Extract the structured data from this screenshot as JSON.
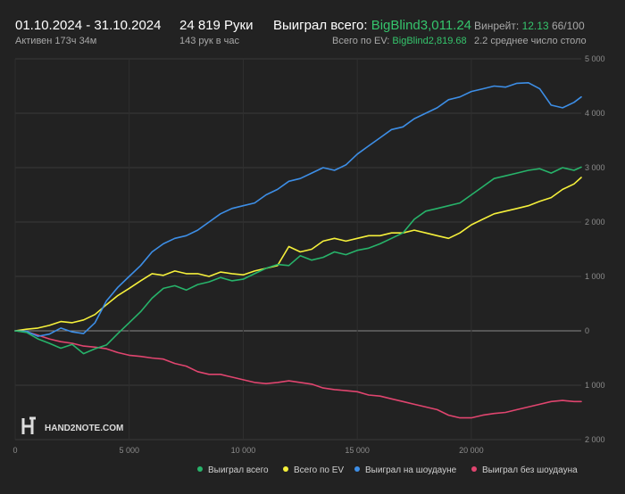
{
  "header": {
    "date_range": "01.10.2024 - 31.10.2024",
    "active_time": "Активен 173ч 34м",
    "hands": "24 819 Руки",
    "hands_per_hour": "143 рук в час",
    "won_label": "Выиграл всего:",
    "won_value": "BigBlind3,011.24",
    "ev_label": "Всего по EV:",
    "ev_value": "BigBlind2,819.68",
    "winrate_label": "Винрейт:",
    "winrate_value": "12.13",
    "winrate_rest": "66/100",
    "avg_tables": "2.2 среднее число столо"
  },
  "logo_text": "HAND2NOTE.COM",
  "colors": {
    "won": "#27b36a",
    "ev": "#f5f03b",
    "showdown": "#3d8ee6",
    "non_showdown": "#e0456f",
    "background": "#222222",
    "grid": "#3a3a3a"
  },
  "chart_data": {
    "type": "line",
    "xlim": [
      0,
      24819
    ],
    "ylim": [
      -2000,
      5000
    ],
    "x_ticks": [
      0,
      5000,
      10000,
      15000,
      20000
    ],
    "x_tick_labels": [
      "0",
      "5 000",
      "10 000",
      "15 000",
      "20 000"
    ],
    "y_ticks": [
      5000,
      4000,
      3000,
      2000,
      1000,
      0,
      -1000,
      -2000
    ],
    "y_tick_labels": [
      "5 000",
      "4 000",
      "3 000",
      "2 000",
      "1 000",
      "0",
      "1 000",
      "2 000"
    ],
    "grid": true,
    "legend_position": "bottom-right",
    "series": [
      {
        "name": "Выиграл всего",
        "color": "#27b36a",
        "x": [
          0,
          500,
          1000,
          1500,
          2000,
          2500,
          3000,
          3500,
          4000,
          4500,
          5000,
          5500,
          6000,
          6500,
          7000,
          7500,
          8000,
          8500,
          9000,
          9500,
          10000,
          10500,
          11000,
          11500,
          12000,
          12500,
          13000,
          13500,
          14000,
          14500,
          15000,
          15500,
          16000,
          16500,
          17000,
          17500,
          18000,
          18500,
          19000,
          19500,
          20000,
          20500,
          21000,
          21500,
          22000,
          22500,
          23000,
          23500,
          24000,
          24500,
          24819
        ],
        "values": [
          0,
          -30,
          -150,
          -230,
          -320,
          -250,
          -420,
          -330,
          -260,
          -50,
          150,
          350,
          600,
          780,
          830,
          750,
          850,
          900,
          980,
          920,
          950,
          1050,
          1150,
          1220,
          1200,
          1380,
          1300,
          1350,
          1450,
          1400,
          1480,
          1520,
          1600,
          1700,
          1800,
          2050,
          2200,
          2250,
          2300,
          2350,
          2500,
          2650,
          2800,
          2850,
          2900,
          2950,
          2980,
          2900,
          3000,
          2950,
          3010
        ]
      },
      {
        "name": "Всего по EV",
        "color": "#f5f03b",
        "x": [
          0,
          500,
          1000,
          1500,
          2000,
          2500,
          3000,
          3500,
          4000,
          4500,
          5000,
          5500,
          6000,
          6500,
          7000,
          7500,
          8000,
          8500,
          9000,
          9500,
          10000,
          10500,
          11000,
          11500,
          12000,
          12500,
          13000,
          13500,
          14000,
          14500,
          15000,
          15500,
          16000,
          16500,
          17000,
          17500,
          18000,
          18500,
          19000,
          19500,
          20000,
          20500,
          21000,
          21500,
          22000,
          22500,
          23000,
          23500,
          24000,
          24500,
          24819
        ],
        "values": [
          0,
          30,
          50,
          100,
          170,
          150,
          200,
          300,
          480,
          650,
          780,
          920,
          1050,
          1020,
          1100,
          1050,
          1050,
          1000,
          1080,
          1050,
          1030,
          1100,
          1150,
          1200,
          1550,
          1450,
          1500,
          1650,
          1700,
          1650,
          1700,
          1750,
          1750,
          1800,
          1800,
          1850,
          1800,
          1750,
          1700,
          1800,
          1950,
          2050,
          2150,
          2200,
          2250,
          2300,
          2380,
          2450,
          2600,
          2700,
          2820
        ]
      },
      {
        "name": "Выиграл на шоудауне",
        "color": "#3d8ee6",
        "x": [
          0,
          500,
          1000,
          1500,
          2000,
          2500,
          3000,
          3500,
          4000,
          4500,
          5000,
          5500,
          6000,
          6500,
          7000,
          7500,
          8000,
          8500,
          9000,
          9500,
          10000,
          10500,
          11000,
          11500,
          12000,
          12500,
          13000,
          13500,
          14000,
          14500,
          15000,
          15500,
          16000,
          16500,
          17000,
          17500,
          18000,
          18500,
          19000,
          19500,
          20000,
          20500,
          21000,
          21500,
          22000,
          22500,
          23000,
          23500,
          24000,
          24500,
          24819
        ],
        "values": [
          0,
          -10,
          -100,
          -60,
          50,
          -20,
          -50,
          150,
          550,
          800,
          1000,
          1200,
          1450,
          1600,
          1700,
          1750,
          1850,
          2000,
          2150,
          2250,
          2300,
          2350,
          2500,
          2600,
          2750,
          2800,
          2900,
          3000,
          2950,
          3050,
          3250,
          3400,
          3550,
          3700,
          3750,
          3900,
          4000,
          4100,
          4250,
          4300,
          4400,
          4450,
          4500,
          4480,
          4550,
          4560,
          4450,
          4150,
          4100,
          4200,
          4300
        ]
      },
      {
        "name": "Выиграл без шоудауна",
        "color": "#e0456f",
        "x": [
          0,
          500,
          1000,
          1500,
          2000,
          2500,
          3000,
          3500,
          4000,
          4500,
          5000,
          5500,
          6000,
          6500,
          7000,
          7500,
          8000,
          8500,
          9000,
          9500,
          10000,
          10500,
          11000,
          11500,
          12000,
          12500,
          13000,
          13500,
          14000,
          14500,
          15000,
          15500,
          16000,
          16500,
          17000,
          17500,
          18000,
          18500,
          19000,
          19500,
          20000,
          20500,
          21000,
          21500,
          22000,
          22500,
          23000,
          23500,
          24000,
          24500,
          24819
        ],
        "values": [
          0,
          -20,
          -80,
          -150,
          -200,
          -230,
          -280,
          -300,
          -330,
          -400,
          -450,
          -470,
          -500,
          -520,
          -600,
          -650,
          -750,
          -800,
          -800,
          -850,
          -900,
          -950,
          -970,
          -950,
          -920,
          -950,
          -980,
          -1050,
          -1080,
          -1100,
          -1120,
          -1180,
          -1200,
          -1250,
          -1300,
          -1350,
          -1400,
          -1450,
          -1550,
          -1600,
          -1600,
          -1550,
          -1520,
          -1500,
          -1450,
          -1400,
          -1350,
          -1300,
          -1280,
          -1300,
          -1300
        ]
      }
    ]
  }
}
